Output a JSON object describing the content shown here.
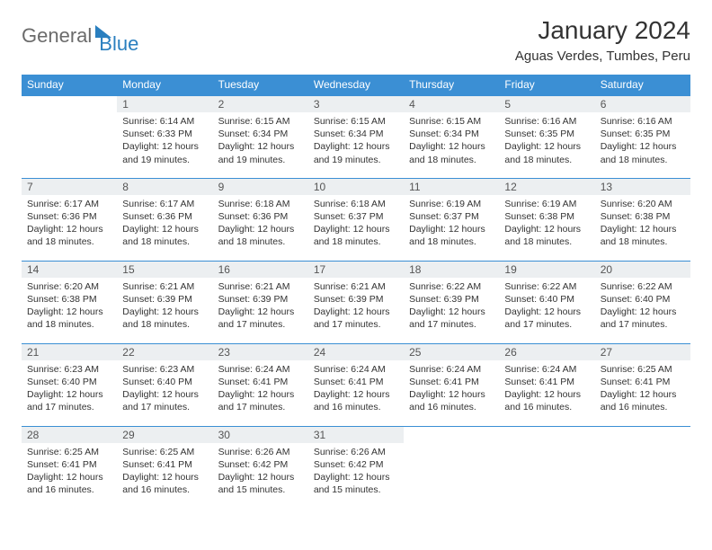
{
  "logo": {
    "part1": "General",
    "part2": "Blue"
  },
  "title": "January 2024",
  "location": "Aguas Verdes, Tumbes, Peru",
  "colors": {
    "header_bg": "#3b8fd4",
    "header_text": "#ffffff",
    "daynum_bg": "#eceff1",
    "border": "#3b8fd4",
    "logo_gray": "#6b6b6b",
    "logo_blue": "#2a7fbf"
  },
  "weekdays": [
    "Sunday",
    "Monday",
    "Tuesday",
    "Wednesday",
    "Thursday",
    "Friday",
    "Saturday"
  ],
  "weeks": [
    [
      {
        "n": "",
        "sr": "",
        "ss": "",
        "dl": ""
      },
      {
        "n": "1",
        "sr": "Sunrise: 6:14 AM",
        "ss": "Sunset: 6:33 PM",
        "dl": "Daylight: 12 hours and 19 minutes."
      },
      {
        "n": "2",
        "sr": "Sunrise: 6:15 AM",
        "ss": "Sunset: 6:34 PM",
        "dl": "Daylight: 12 hours and 19 minutes."
      },
      {
        "n": "3",
        "sr": "Sunrise: 6:15 AM",
        "ss": "Sunset: 6:34 PM",
        "dl": "Daylight: 12 hours and 19 minutes."
      },
      {
        "n": "4",
        "sr": "Sunrise: 6:15 AM",
        "ss": "Sunset: 6:34 PM",
        "dl": "Daylight: 12 hours and 18 minutes."
      },
      {
        "n": "5",
        "sr": "Sunrise: 6:16 AM",
        "ss": "Sunset: 6:35 PM",
        "dl": "Daylight: 12 hours and 18 minutes."
      },
      {
        "n": "6",
        "sr": "Sunrise: 6:16 AM",
        "ss": "Sunset: 6:35 PM",
        "dl": "Daylight: 12 hours and 18 minutes."
      }
    ],
    [
      {
        "n": "7",
        "sr": "Sunrise: 6:17 AM",
        "ss": "Sunset: 6:36 PM",
        "dl": "Daylight: 12 hours and 18 minutes."
      },
      {
        "n": "8",
        "sr": "Sunrise: 6:17 AM",
        "ss": "Sunset: 6:36 PM",
        "dl": "Daylight: 12 hours and 18 minutes."
      },
      {
        "n": "9",
        "sr": "Sunrise: 6:18 AM",
        "ss": "Sunset: 6:36 PM",
        "dl": "Daylight: 12 hours and 18 minutes."
      },
      {
        "n": "10",
        "sr": "Sunrise: 6:18 AM",
        "ss": "Sunset: 6:37 PM",
        "dl": "Daylight: 12 hours and 18 minutes."
      },
      {
        "n": "11",
        "sr": "Sunrise: 6:19 AM",
        "ss": "Sunset: 6:37 PM",
        "dl": "Daylight: 12 hours and 18 minutes."
      },
      {
        "n": "12",
        "sr": "Sunrise: 6:19 AM",
        "ss": "Sunset: 6:38 PM",
        "dl": "Daylight: 12 hours and 18 minutes."
      },
      {
        "n": "13",
        "sr": "Sunrise: 6:20 AM",
        "ss": "Sunset: 6:38 PM",
        "dl": "Daylight: 12 hours and 18 minutes."
      }
    ],
    [
      {
        "n": "14",
        "sr": "Sunrise: 6:20 AM",
        "ss": "Sunset: 6:38 PM",
        "dl": "Daylight: 12 hours and 18 minutes."
      },
      {
        "n": "15",
        "sr": "Sunrise: 6:21 AM",
        "ss": "Sunset: 6:39 PM",
        "dl": "Daylight: 12 hours and 18 minutes."
      },
      {
        "n": "16",
        "sr": "Sunrise: 6:21 AM",
        "ss": "Sunset: 6:39 PM",
        "dl": "Daylight: 12 hours and 17 minutes."
      },
      {
        "n": "17",
        "sr": "Sunrise: 6:21 AM",
        "ss": "Sunset: 6:39 PM",
        "dl": "Daylight: 12 hours and 17 minutes."
      },
      {
        "n": "18",
        "sr": "Sunrise: 6:22 AM",
        "ss": "Sunset: 6:39 PM",
        "dl": "Daylight: 12 hours and 17 minutes."
      },
      {
        "n": "19",
        "sr": "Sunrise: 6:22 AM",
        "ss": "Sunset: 6:40 PM",
        "dl": "Daylight: 12 hours and 17 minutes."
      },
      {
        "n": "20",
        "sr": "Sunrise: 6:22 AM",
        "ss": "Sunset: 6:40 PM",
        "dl": "Daylight: 12 hours and 17 minutes."
      }
    ],
    [
      {
        "n": "21",
        "sr": "Sunrise: 6:23 AM",
        "ss": "Sunset: 6:40 PM",
        "dl": "Daylight: 12 hours and 17 minutes."
      },
      {
        "n": "22",
        "sr": "Sunrise: 6:23 AM",
        "ss": "Sunset: 6:40 PM",
        "dl": "Daylight: 12 hours and 17 minutes."
      },
      {
        "n": "23",
        "sr": "Sunrise: 6:24 AM",
        "ss": "Sunset: 6:41 PM",
        "dl": "Daylight: 12 hours and 17 minutes."
      },
      {
        "n": "24",
        "sr": "Sunrise: 6:24 AM",
        "ss": "Sunset: 6:41 PM",
        "dl": "Daylight: 12 hours and 16 minutes."
      },
      {
        "n": "25",
        "sr": "Sunrise: 6:24 AM",
        "ss": "Sunset: 6:41 PM",
        "dl": "Daylight: 12 hours and 16 minutes."
      },
      {
        "n": "26",
        "sr": "Sunrise: 6:24 AM",
        "ss": "Sunset: 6:41 PM",
        "dl": "Daylight: 12 hours and 16 minutes."
      },
      {
        "n": "27",
        "sr": "Sunrise: 6:25 AM",
        "ss": "Sunset: 6:41 PM",
        "dl": "Daylight: 12 hours and 16 minutes."
      }
    ],
    [
      {
        "n": "28",
        "sr": "Sunrise: 6:25 AM",
        "ss": "Sunset: 6:41 PM",
        "dl": "Daylight: 12 hours and 16 minutes."
      },
      {
        "n": "29",
        "sr": "Sunrise: 6:25 AM",
        "ss": "Sunset: 6:41 PM",
        "dl": "Daylight: 12 hours and 16 minutes."
      },
      {
        "n": "30",
        "sr": "Sunrise: 6:26 AM",
        "ss": "Sunset: 6:42 PM",
        "dl": "Daylight: 12 hours and 15 minutes."
      },
      {
        "n": "31",
        "sr": "Sunrise: 6:26 AM",
        "ss": "Sunset: 6:42 PM",
        "dl": "Daylight: 12 hours and 15 minutes."
      },
      {
        "n": "",
        "sr": "",
        "ss": "",
        "dl": ""
      },
      {
        "n": "",
        "sr": "",
        "ss": "",
        "dl": ""
      },
      {
        "n": "",
        "sr": "",
        "ss": "",
        "dl": ""
      }
    ]
  ]
}
